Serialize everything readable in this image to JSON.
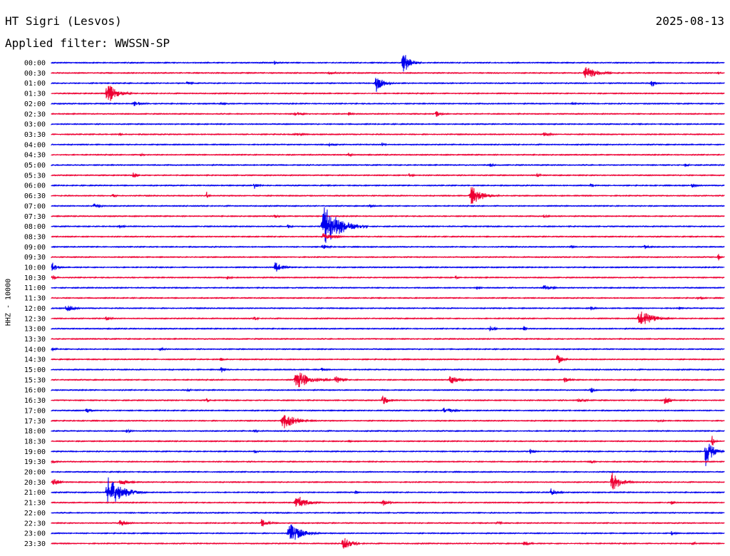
{
  "header": {
    "station": "HT Sigri (Lesvos)",
    "date": "2025-08-13",
    "filter": "Applied filter: WWSSN-SP"
  },
  "chart_data": {
    "type": "seismogram-helicorder",
    "ylabel": "HHZ - 10000",
    "colors": [
      "#0000ee",
      "#ee0033"
    ],
    "rows": [
      {
        "label": "00:00",
        "events": [
          {
            "x": 0.52,
            "amp": 18,
            "len": 0.03
          },
          {
            "x": 0.33,
            "amp": 3,
            "len": 0.02
          }
        ]
      },
      {
        "label": "00:30",
        "events": [
          {
            "x": 0.79,
            "amp": 10,
            "len": 0.05
          },
          {
            "x": 0.41,
            "amp": 3,
            "len": 0.03
          },
          {
            "x": 0.99,
            "amp": 3,
            "len": 0.01
          }
        ]
      },
      {
        "label": "01:00",
        "events": [
          {
            "x": 0.48,
            "amp": 14,
            "len": 0.03
          },
          {
            "x": 0.89,
            "amp": 7,
            "len": 0.02
          },
          {
            "x": 0.2,
            "amp": 3,
            "len": 0.02
          }
        ]
      },
      {
        "label": "01:30",
        "events": [
          {
            "x": 0.08,
            "amp": 16,
            "len": 0.04
          },
          {
            "x": 0.63,
            "amp": 3,
            "len": 0.01
          }
        ]
      },
      {
        "label": "02:00",
        "events": [
          {
            "x": 0.12,
            "amp": 4,
            "len": 0.04
          },
          {
            "x": 0.25,
            "amp": 2,
            "len": 0.03
          },
          {
            "x": 0.77,
            "amp": 2,
            "len": 0.03
          }
        ]
      },
      {
        "label": "02:30",
        "events": [
          {
            "x": 0.36,
            "amp": 4,
            "len": 0.03
          },
          {
            "x": 0.57,
            "amp": 5,
            "len": 0.02
          },
          {
            "x": 0.44,
            "amp": 3,
            "len": 0.02
          }
        ]
      },
      {
        "label": "03:00",
        "events": []
      },
      {
        "label": "03:30",
        "events": [
          {
            "x": 0.73,
            "amp": 4,
            "len": 0.03
          },
          {
            "x": 0.36,
            "amp": 3,
            "len": 0.03
          },
          {
            "x": 0.1,
            "amp": 2,
            "len": 0.02
          }
        ]
      },
      {
        "label": "04:00",
        "events": [
          {
            "x": 0.41,
            "amp": 3,
            "len": 0.03
          },
          {
            "x": 0.49,
            "amp": 3,
            "len": 0.02
          }
        ]
      },
      {
        "label": "04:30",
        "events": [
          {
            "x": 0.13,
            "amp": 3,
            "len": 0.02
          },
          {
            "x": 0.44,
            "amp": 3,
            "len": 0.02
          }
        ]
      },
      {
        "label": "05:00",
        "events": [
          {
            "x": 0.65,
            "amp": 3,
            "len": 0.02
          },
          {
            "x": 0.94,
            "amp": 3,
            "len": 0.02
          }
        ]
      },
      {
        "label": "05:30",
        "events": [
          {
            "x": 0.12,
            "amp": 5,
            "len": 0.02
          },
          {
            "x": 0.53,
            "amp": 3,
            "len": 0.02
          },
          {
            "x": 0.72,
            "amp": 3,
            "len": 0.02
          }
        ]
      },
      {
        "label": "06:00",
        "events": [
          {
            "x": 0.3,
            "amp": 5,
            "len": 0.02
          },
          {
            "x": 0.8,
            "amp": 4,
            "len": 0.02
          },
          {
            "x": 0.95,
            "amp": 4,
            "len": 0.02
          }
        ]
      },
      {
        "label": "06:30",
        "events": [
          {
            "x": 0.62,
            "amp": 14,
            "len": 0.05
          },
          {
            "x": 0.23,
            "amp": 6,
            "len": 0.01
          },
          {
            "x": 0.09,
            "amp": 3,
            "len": 0.02
          }
        ]
      },
      {
        "label": "07:00",
        "events": [
          {
            "x": 0.06,
            "amp": 4,
            "len": 0.03
          },
          {
            "x": 0.47,
            "amp": 3,
            "len": 0.02
          }
        ]
      },
      {
        "label": "07:30",
        "events": [
          {
            "x": 0.33,
            "amp": 3,
            "len": 0.02
          },
          {
            "x": 0.73,
            "amp": 3,
            "len": 0.02
          }
        ]
      },
      {
        "label": "08:00",
        "events": [
          {
            "x": 0.4,
            "amp": 30,
            "len": 0.07
          },
          {
            "x": 0.1,
            "amp": 3,
            "len": 0.02
          },
          {
            "x": 0.35,
            "amp": 3,
            "len": 0.02
          }
        ]
      },
      {
        "label": "08:30",
        "events": [
          {
            "x": 0.4,
            "amp": 5,
            "len": 0.05
          }
        ]
      },
      {
        "label": "09:00",
        "events": [
          {
            "x": 0.4,
            "amp": 4,
            "len": 0.03
          },
          {
            "x": 0.88,
            "amp": 4,
            "len": 0.02
          },
          {
            "x": 0.77,
            "amp": 3,
            "len": 0.02
          }
        ]
      },
      {
        "label": "09:30",
        "events": [
          {
            "x": 0.99,
            "amp": 6,
            "len": 0.01
          }
        ]
      },
      {
        "label": "10:00",
        "events": [
          {
            "x": 0.0,
            "amp": 8,
            "len": 0.02
          },
          {
            "x": 0.33,
            "amp": 9,
            "len": 0.03
          }
        ]
      },
      {
        "label": "10:30",
        "events": [
          {
            "x": 0.0,
            "amp": 4,
            "len": 0.02
          },
          {
            "x": 0.26,
            "amp": 3,
            "len": 0.02
          },
          {
            "x": 0.6,
            "amp": 4,
            "len": 0.01
          }
        ]
      },
      {
        "label": "11:00",
        "events": [
          {
            "x": 0.73,
            "amp": 5,
            "len": 0.03
          },
          {
            "x": 0.63,
            "amp": 3,
            "len": 0.02
          }
        ]
      },
      {
        "label": "11:30",
        "events": [
          {
            "x": 0.96,
            "amp": 3,
            "len": 0.02
          }
        ]
      },
      {
        "label": "12:00",
        "events": [
          {
            "x": 0.02,
            "amp": 7,
            "len": 0.03
          },
          {
            "x": 0.8,
            "amp": 3,
            "len": 0.02
          },
          {
            "x": 0.93,
            "amp": 3,
            "len": 0.02
          }
        ]
      },
      {
        "label": "12:30",
        "events": [
          {
            "x": 0.87,
            "amp": 12,
            "len": 0.06
          },
          {
            "x": 0.08,
            "amp": 4,
            "len": 0.02
          },
          {
            "x": 0.3,
            "amp": 3,
            "len": 0.02
          }
        ]
      },
      {
        "label": "13:00",
        "events": [
          {
            "x": 0.65,
            "amp": 5,
            "len": 0.02
          },
          {
            "x": 0.7,
            "amp": 6,
            "len": 0.01
          }
        ]
      },
      {
        "label": "13:30",
        "events": []
      },
      {
        "label": "14:00",
        "events": [
          {
            "x": 0.0,
            "amp": 3,
            "len": 0.02
          },
          {
            "x": 0.16,
            "amp": 3,
            "len": 0.02
          }
        ]
      },
      {
        "label": "14:30",
        "events": [
          {
            "x": 0.75,
            "amp": 9,
            "len": 0.02
          },
          {
            "x": 0.25,
            "amp": 3,
            "len": 0.02
          }
        ]
      },
      {
        "label": "15:00",
        "events": [
          {
            "x": 0.25,
            "amp": 5,
            "len": 0.02
          },
          {
            "x": 0.4,
            "amp": 3,
            "len": 0.02
          }
        ]
      },
      {
        "label": "15:30",
        "events": [
          {
            "x": 0.36,
            "amp": 14,
            "len": 0.06
          },
          {
            "x": 0.42,
            "amp": 6,
            "len": 0.03
          },
          {
            "x": 0.59,
            "amp": 8,
            "len": 0.04
          },
          {
            "x": 0.76,
            "amp": 4,
            "len": 0.03
          }
        ]
      },
      {
        "label": "16:00",
        "events": [
          {
            "x": 0.2,
            "amp": 3,
            "len": 0.02
          },
          {
            "x": 0.8,
            "amp": 5,
            "len": 0.02
          },
          {
            "x": 0.86,
            "amp": 3,
            "len": 0.02
          }
        ]
      },
      {
        "label": "16:30",
        "events": [
          {
            "x": 0.49,
            "amp": 8,
            "len": 0.03
          },
          {
            "x": 0.23,
            "amp": 4,
            "len": 0.01
          },
          {
            "x": 0.91,
            "amp": 9,
            "len": 0.02
          },
          {
            "x": 0.78,
            "amp": 4,
            "len": 0.03
          }
        ]
      },
      {
        "label": "17:00",
        "events": [
          {
            "x": 0.05,
            "amp": 5,
            "len": 0.02
          },
          {
            "x": 0.58,
            "amp": 5,
            "len": 0.04
          }
        ]
      },
      {
        "label": "17:30",
        "events": [
          {
            "x": 0.34,
            "amp": 12,
            "len": 0.06
          },
          {
            "x": 0.9,
            "amp": 3,
            "len": 0.02
          }
        ]
      },
      {
        "label": "18:00",
        "events": [
          {
            "x": 0.11,
            "amp": 3,
            "len": 0.02
          },
          {
            "x": 0.3,
            "amp": 3,
            "len": 0.02
          }
        ]
      },
      {
        "label": "18:30",
        "events": [
          {
            "x": 0.98,
            "amp": 14,
            "len": 0.01
          },
          {
            "x": 0.44,
            "amp": 4,
            "len": 0.01
          }
        ]
      },
      {
        "label": "19:00",
        "events": [
          {
            "x": 0.97,
            "amp": 22,
            "len": 0.03
          },
          {
            "x": 0.71,
            "amp": 4,
            "len": 0.02
          },
          {
            "x": 0.3,
            "amp": 3,
            "len": 0.02
          }
        ]
      },
      {
        "label": "19:30",
        "events": [
          {
            "x": 0.0,
            "amp": 3,
            "len": 0.02
          },
          {
            "x": 0.8,
            "amp": 3,
            "len": 0.02
          }
        ]
      },
      {
        "label": "20:00",
        "events": []
      },
      {
        "label": "20:30",
        "events": [
          {
            "x": 0.0,
            "amp": 6,
            "len": 0.03
          },
          {
            "x": 0.1,
            "amp": 5,
            "len": 0.04
          },
          {
            "x": 0.83,
            "amp": 14,
            "len": 0.04
          }
        ]
      },
      {
        "label": "21:00",
        "events": [
          {
            "x": 0.08,
            "amp": 24,
            "len": 0.06
          },
          {
            "x": 0.74,
            "amp": 6,
            "len": 0.03
          },
          {
            "x": 0.45,
            "amp": 3,
            "len": 0.02
          }
        ]
      },
      {
        "label": "21:30",
        "events": [
          {
            "x": 0.36,
            "amp": 14,
            "len": 0.04
          },
          {
            "x": 0.49,
            "amp": 5,
            "len": 0.03
          },
          {
            "x": 0.92,
            "amp": 3,
            "len": 0.02
          }
        ]
      },
      {
        "label": "22:00",
        "events": []
      },
      {
        "label": "22:30",
        "events": [
          {
            "x": 0.1,
            "amp": 6,
            "len": 0.03
          },
          {
            "x": 0.31,
            "amp": 7,
            "len": 0.03
          },
          {
            "x": 0.66,
            "amp": 3,
            "len": 0.02
          }
        ]
      },
      {
        "label": "23:00",
        "events": [
          {
            "x": 0.35,
            "amp": 16,
            "len": 0.05
          },
          {
            "x": 0.92,
            "amp": 3,
            "len": 0.02
          }
        ]
      },
      {
        "label": "23:30",
        "events": [
          {
            "x": 0.43,
            "amp": 10,
            "len": 0.04
          },
          {
            "x": 0.7,
            "amp": 4,
            "len": 0.03
          },
          {
            "x": 0.95,
            "amp": 3,
            "len": 0.02
          }
        ]
      }
    ]
  }
}
